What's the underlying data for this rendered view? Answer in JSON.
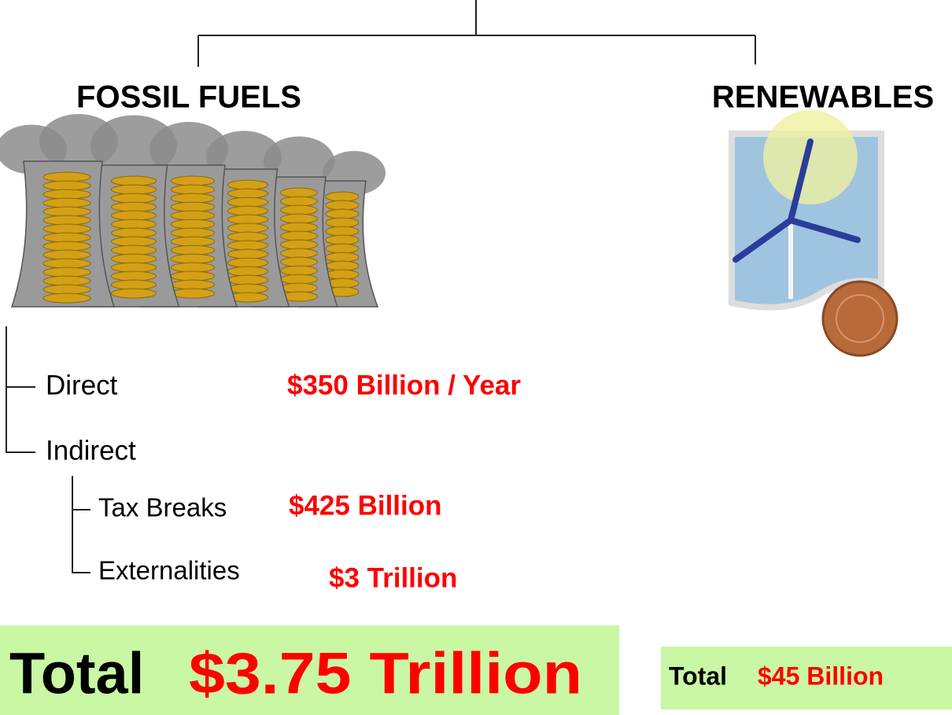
{
  "fossil_fuels": {
    "title": "FOSSIL FUELS",
    "direct": {
      "label": "Direct",
      "amount": "$350 Billion / Year"
    },
    "indirect": {
      "label": "Indirect",
      "tax_breaks": {
        "label": "Tax Breaks",
        "amount": "$425 Billion"
      },
      "externalities": {
        "label": "Externalities",
        "amount": "$3 Trillion"
      }
    },
    "total": {
      "label": "Total",
      "amount": "$3.75 Trillion"
    }
  },
  "renewables": {
    "title": "RENEWABLES",
    "total": {
      "label": "Total",
      "amount": "$45 Billion"
    }
  }
}
